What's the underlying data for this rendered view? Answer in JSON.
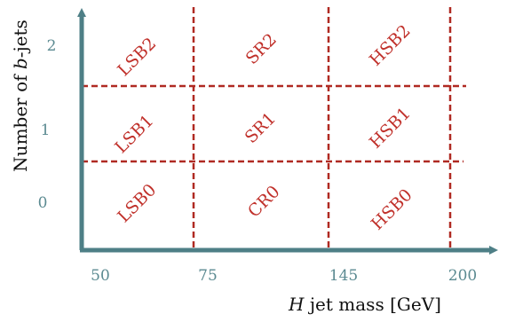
{
  "diagram": {
    "x_axis": {
      "title_italic": "H",
      "title_rest": " jet mass [GeV]",
      "ticks": [
        "50",
        "75",
        "145",
        "200"
      ]
    },
    "y_axis": {
      "title_prefix": "Number of ",
      "title_italic": "b",
      "title_suffix": "-jets",
      "ticks": [
        "2",
        "1",
        "0"
      ]
    },
    "regions": {
      "row2": [
        "LSB2",
        "SR2",
        "HSB2"
      ],
      "row1": [
        "LSB1",
        "SR1",
        "HSB1"
      ],
      "row0": [
        "LSB0",
        "CR0",
        "HSB0"
      ]
    },
    "colors": {
      "axis": "#4e7f86",
      "divider": "#b02a22",
      "region_text": "#c0302a",
      "tick_text": "#5b8a91"
    }
  }
}
